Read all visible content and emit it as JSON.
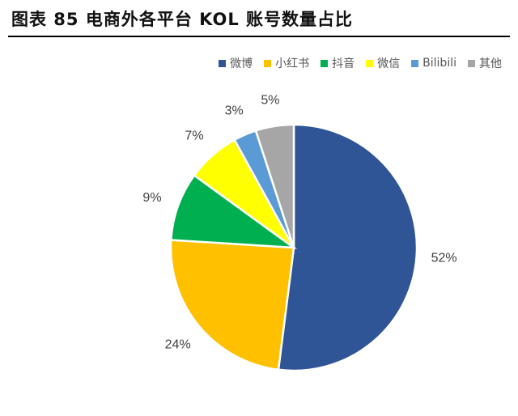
{
  "title": "图表 85 电商外各平台 KOL 账号数量占比",
  "chart_data": {
    "type": "pie",
    "title": "图表 85 电商外各平台 KOL 账号数量占比",
    "legend_position": "top-right",
    "categories": [
      "微博",
      "小红书",
      "抖音",
      "微信",
      "Bilibili",
      "其他"
    ],
    "values": [
      52,
      24,
      9,
      7,
      3,
      5
    ],
    "labels": [
      "52%",
      "24%",
      "9%",
      "7%",
      "3%",
      "5%"
    ],
    "colors": [
      "#2F5597",
      "#FFC000",
      "#00B050",
      "#FFFF00",
      "#5B9BD5",
      "#A6A6A6"
    ],
    "start_angle_deg": 0,
    "direction": "clockwise"
  }
}
